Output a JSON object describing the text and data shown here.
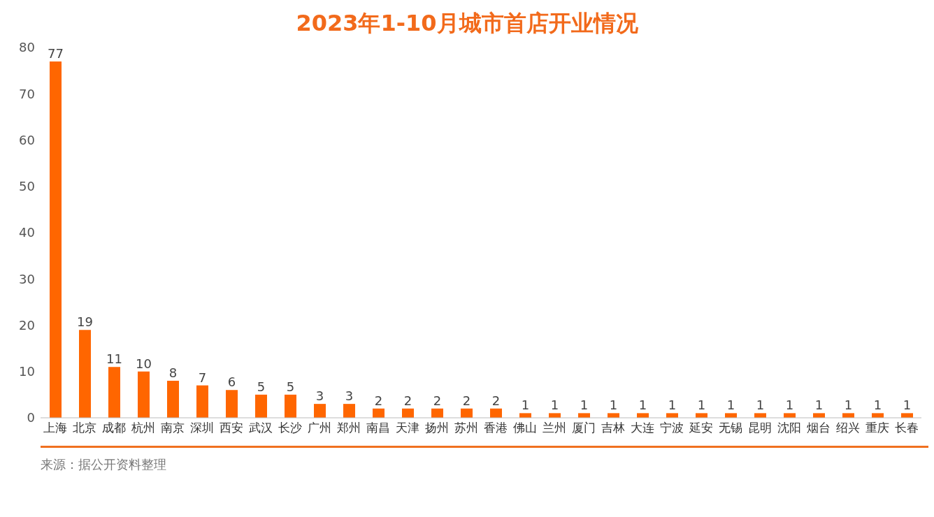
{
  "chart_data": {
    "type": "bar",
    "title": "2023年1-10月城市首店开业情况",
    "categories": [
      "上海",
      "北京",
      "成都",
      "杭州",
      "南京",
      "深圳",
      "西安",
      "武汉",
      "长沙",
      "广州",
      "郑州",
      "南昌",
      "天津",
      "扬州",
      "苏州",
      "香港",
      "佛山",
      "兰州",
      "厦门",
      "吉林",
      "大连",
      "宁波",
      "延安",
      "无锡",
      "昆明",
      "沈阳",
      "烟台",
      "绍兴",
      "重庆",
      "长春"
    ],
    "values": [
      77,
      19,
      11,
      10,
      8,
      7,
      6,
      5,
      5,
      3,
      3,
      2,
      2,
      2,
      2,
      2,
      1,
      1,
      1,
      1,
      1,
      1,
      1,
      1,
      1,
      1,
      1,
      1,
      1,
      1
    ],
    "color": "#ff6600",
    "ylim": [
      0,
      80
    ],
    "yticks": [
      0,
      10,
      20,
      30,
      40,
      50,
      60,
      70,
      80
    ],
    "grid": false,
    "data_labels": true,
    "annotations": [
      "来源：据公开资料整理"
    ]
  }
}
